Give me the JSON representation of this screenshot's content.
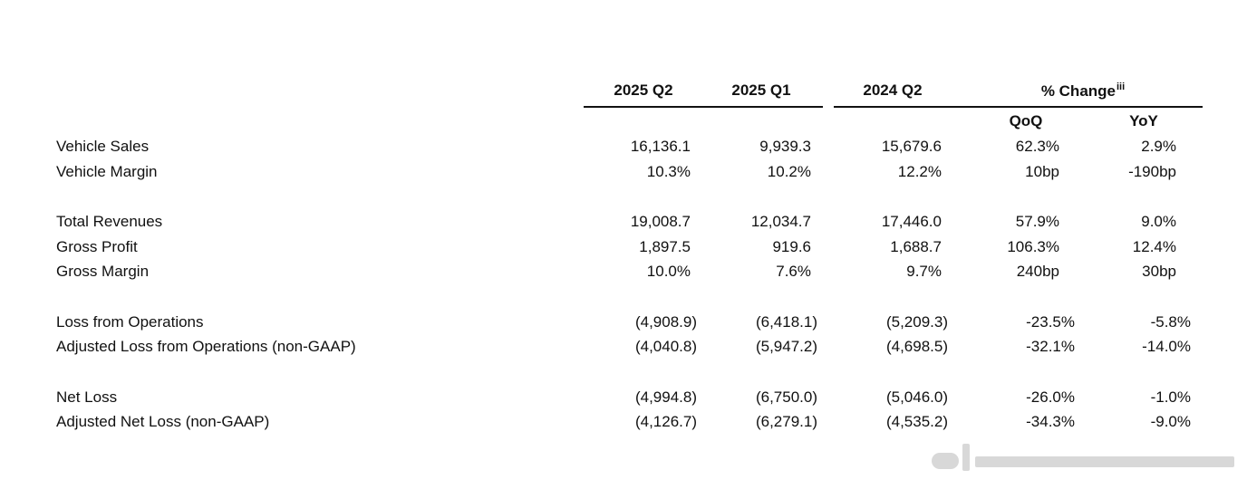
{
  "headers": {
    "col1": "2025 Q2",
    "col2": "2025 Q1",
    "col3": "2024 Q2",
    "change": "% Change",
    "change_note": "iii",
    "qoq": "QoQ",
    "yoy": "YoY"
  },
  "rows": [
    {
      "label": "Vehicle Sales",
      "q2_2025": "16,136.1",
      "q1_2025": "9,939.3",
      "q2_2024": "15,679.6",
      "qoq": "62.3%",
      "yoy": "2.9%"
    },
    {
      "label": "Vehicle Margin",
      "q2_2025": "10.3%",
      "q1_2025": "10.2%",
      "q2_2024": "12.2%",
      "qoq": "10bp",
      "yoy": "-190bp"
    },
    {
      "label": "Total Revenues",
      "q2_2025": "19,008.7",
      "q1_2025": "12,034.7",
      "q2_2024": "17,446.0",
      "qoq": "57.9%",
      "yoy": "9.0%"
    },
    {
      "label": "Gross Profit",
      "q2_2025": "1,897.5",
      "q1_2025": "919.6",
      "q2_2024": "1,688.7",
      "qoq": "106.3%",
      "yoy": "12.4%"
    },
    {
      "label": "Gross Margin",
      "q2_2025": "10.0%",
      "q1_2025": "7.6%",
      "q2_2024": "9.7%",
      "qoq": "240bp",
      "yoy": "30bp"
    },
    {
      "label": "Loss from Operations",
      "q2_2025": "(4,908.9)",
      "q1_2025": "(6,418.1)",
      "q2_2024": "(5,209.3)",
      "qoq": "-23.5%",
      "yoy": "-5.8%"
    },
    {
      "label": "Adjusted Loss from Operations (non-GAAP)",
      "q2_2025": "(4,040.8)",
      "q1_2025": "(5,947.2)",
      "q2_2024": "(4,698.5)",
      "qoq": "-32.1%",
      "yoy": "-14.0%"
    },
    {
      "label": "Net Loss",
      "q2_2025": "(4,994.8)",
      "q1_2025": "(6,750.0)",
      "q2_2024": "(5,046.0)",
      "qoq": "-26.0%",
      "yoy": "-1.0%"
    },
    {
      "label": "Adjusted Net Loss (non-GAAP)",
      "q2_2025": "(4,126.7)",
      "q1_2025": "(6,279.1)",
      "q2_2024": "(4,535.2)",
      "qoq": "-34.3%",
      "yoy": "-9.0%"
    }
  ]
}
